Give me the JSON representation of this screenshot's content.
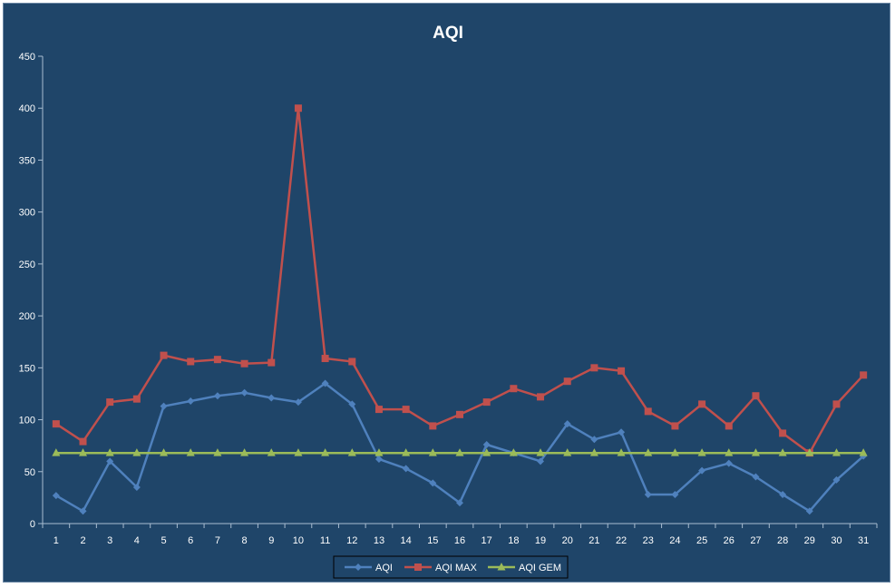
{
  "chart_data": {
    "type": "line",
    "title": "AQI",
    "xlabel": "",
    "ylabel": "",
    "categories": [
      "1",
      "2",
      "3",
      "4",
      "5",
      "6",
      "7",
      "8",
      "9",
      "10",
      "11",
      "12",
      "13",
      "14",
      "15",
      "16",
      "17",
      "18",
      "19",
      "20",
      "21",
      "22",
      "23",
      "24",
      "25",
      "26",
      "27",
      "28",
      "29",
      "30",
      "31"
    ],
    "ylim": [
      0,
      450
    ],
    "yticks": [
      0,
      50,
      100,
      150,
      200,
      250,
      300,
      350,
      400,
      450
    ],
    "grid": false,
    "legend": "bottom",
    "series": [
      {
        "name": "AQI",
        "color": "#4f81bd",
        "marker": "diamond",
        "values": [
          27,
          12,
          60,
          35,
          113,
          118,
          123,
          126,
          121,
          117,
          135,
          115,
          62,
          53,
          39,
          20,
          76,
          68,
          60,
          96,
          81,
          88,
          28,
          28,
          51,
          58,
          45,
          28,
          12,
          42,
          65
        ]
      },
      {
        "name": "AQI MAX",
        "color": "#c0504d",
        "marker": "square",
        "values": [
          96,
          79,
          117,
          120,
          162,
          156,
          158,
          154,
          155,
          400,
          159,
          156,
          110,
          110,
          94,
          105,
          117,
          130,
          122,
          137,
          150,
          147,
          108,
          94,
          115,
          94,
          123,
          87,
          68,
          115,
          143
        ]
      },
      {
        "name": "AQI GEM",
        "color": "#9bbb59",
        "marker": "triangle",
        "values": [
          68,
          68,
          68,
          68,
          68,
          68,
          68,
          68,
          68,
          68,
          68,
          68,
          68,
          68,
          68,
          68,
          68,
          68,
          68,
          68,
          68,
          68,
          68,
          68,
          68,
          68,
          68,
          68,
          68,
          68,
          68
        ]
      }
    ]
  }
}
